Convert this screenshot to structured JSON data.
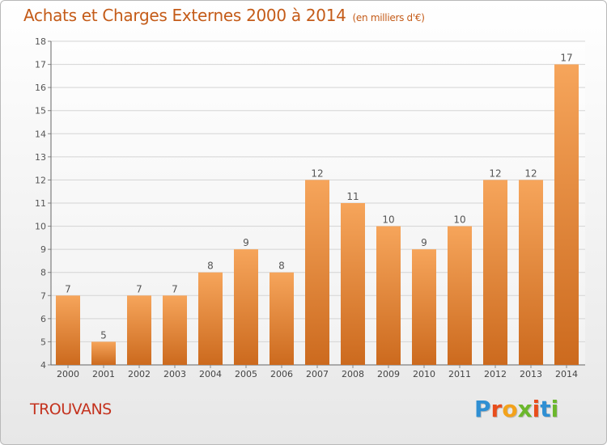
{
  "title": "Achats et Charges Externes 2000 à 2014",
  "subtitle": "(en milliers d'€)",
  "commune": "TROUVANS",
  "logo_text": "Proxiti",
  "logo_colors": [
    "#2f8fd3",
    "#e84d1c",
    "#f3a21b",
    "#6bb72c",
    "#e84d1c",
    "#2f8fd3",
    "#6bb72c"
  ],
  "colors": {
    "bar_top": "#f6a55b",
    "bar_bottom": "#cc6a1e",
    "title": "#c45b18",
    "commune": "#c4321e"
  },
  "chart_data": {
    "type": "bar",
    "categories": [
      "2000",
      "2001",
      "2002",
      "2003",
      "2004",
      "2005",
      "2006",
      "2007",
      "2008",
      "2009",
      "2010",
      "2011",
      "2012",
      "2013",
      "2014"
    ],
    "values": [
      7,
      5,
      7,
      7,
      8,
      9,
      8,
      12,
      11,
      10,
      9,
      10,
      12,
      12,
      17
    ],
    "ylim": [
      4,
      18
    ],
    "yticks": [
      4,
      5,
      6,
      7,
      8,
      9,
      10,
      11,
      12,
      13,
      14,
      15,
      16,
      17,
      18
    ],
    "xlabel": "",
    "ylabel": "",
    "grid": true,
    "data_labels": true
  }
}
